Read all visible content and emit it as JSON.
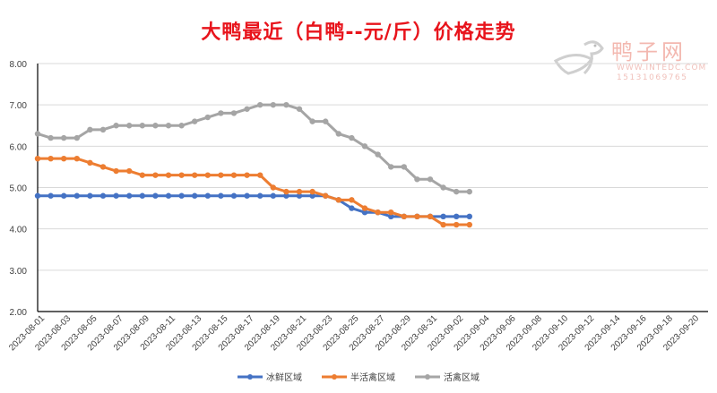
{
  "chart_data": {
    "type": "line",
    "title": "大鸭最近（白鸭--元/斤）价格走势",
    "xlabel": "",
    "ylabel": "",
    "ylim": [
      2,
      8
    ],
    "yticks": [
      "2.00",
      "3.00",
      "4.00",
      "5.00",
      "6.00",
      "7.00",
      "8.00"
    ],
    "x_start": "2023-08-01",
    "x_end": "2023-09-20",
    "x_tick_step_days": 2,
    "grid": true,
    "legend_position": "bottom",
    "x": [
      "2023-08-01",
      "2023-08-02",
      "2023-08-03",
      "2023-08-04",
      "2023-08-05",
      "2023-08-06",
      "2023-08-07",
      "2023-08-08",
      "2023-08-09",
      "2023-08-10",
      "2023-08-11",
      "2023-08-12",
      "2023-08-13",
      "2023-08-14",
      "2023-08-15",
      "2023-08-16",
      "2023-08-17",
      "2023-08-18",
      "2023-08-19",
      "2023-08-20",
      "2023-08-21",
      "2023-08-22",
      "2023-08-23",
      "2023-08-24",
      "2023-08-25",
      "2023-08-26",
      "2023-08-27",
      "2023-08-28",
      "2023-08-29",
      "2023-08-30",
      "2023-08-31",
      "2023-09-01",
      "2023-09-02",
      "2023-09-03"
    ],
    "series": [
      {
        "name": "冰鲜区域",
        "color": "#4472c4",
        "values": [
          4.8,
          4.8,
          4.8,
          4.8,
          4.8,
          4.8,
          4.8,
          4.8,
          4.8,
          4.8,
          4.8,
          4.8,
          4.8,
          4.8,
          4.8,
          4.8,
          4.8,
          4.8,
          4.8,
          4.8,
          4.8,
          4.8,
          4.8,
          4.7,
          4.5,
          4.4,
          4.4,
          4.3,
          4.3,
          4.3,
          4.3,
          4.3,
          4.3,
          4.3
        ]
      },
      {
        "name": "半活禽区域",
        "color": "#ed7d31",
        "values": [
          5.7,
          5.7,
          5.7,
          5.7,
          5.6,
          5.5,
          5.4,
          5.4,
          5.3,
          5.3,
          5.3,
          5.3,
          5.3,
          5.3,
          5.3,
          5.3,
          5.3,
          5.3,
          5.0,
          4.9,
          4.9,
          4.9,
          4.8,
          4.7,
          4.7,
          4.5,
          4.4,
          4.4,
          4.3,
          4.3,
          4.3,
          4.1,
          4.1,
          4.1
        ]
      },
      {
        "name": "活禽区域",
        "color": "#a5a5a5",
        "values": [
          6.3,
          6.2,
          6.2,
          6.2,
          6.4,
          6.4,
          6.5,
          6.5,
          6.5,
          6.5,
          6.5,
          6.5,
          6.6,
          6.7,
          6.8,
          6.8,
          6.9,
          7.0,
          7.0,
          7.0,
          6.9,
          6.6,
          6.6,
          6.3,
          6.2,
          6.0,
          5.8,
          5.5,
          5.5,
          5.2,
          5.2,
          5.0,
          4.9,
          4.9
        ]
      }
    ]
  },
  "watermark": {
    "name": "鸭子网",
    "url": "WWW.INTEDC.COM",
    "phone": "15131069765"
  }
}
